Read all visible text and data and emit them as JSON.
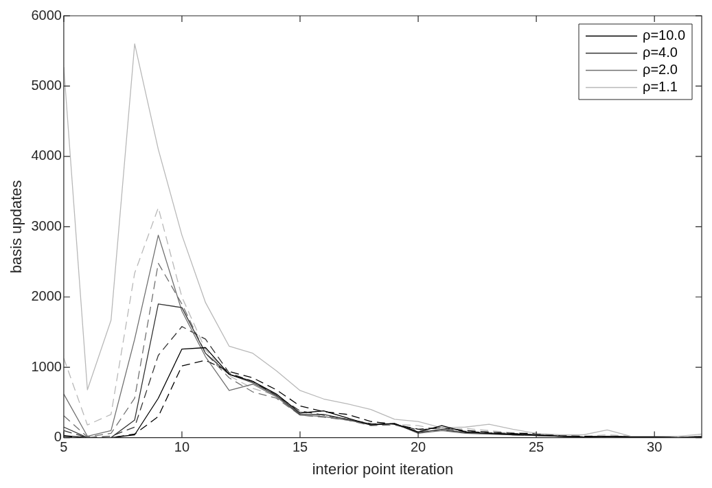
{
  "chart_data": {
    "type": "line",
    "xlabel": "interior point iteration",
    "ylabel": "basis updates",
    "x": [
      5,
      6,
      7,
      8,
      9,
      10,
      11,
      12,
      13,
      14,
      15,
      16,
      17,
      18,
      19,
      20,
      21,
      22,
      23,
      24,
      25,
      26,
      27,
      28,
      29,
      30,
      31,
      32
    ],
    "xlim": [
      5,
      32
    ],
    "xticks": [
      5,
      10,
      15,
      20,
      25,
      30
    ],
    "ylim": [
      0,
      6000
    ],
    "yticks": [
      0,
      1000,
      2000,
      3000,
      4000,
      5000,
      6000
    ],
    "grid": false,
    "legend": "top right",
    "marker": "none",
    "series": [
      {
        "name": "ρ=10.0",
        "color": "#000000",
        "line_style": "solid",
        "values": [
          30,
          0,
          0,
          40,
          560,
          1260,
          1280,
          900,
          800,
          620,
          350,
          380,
          280,
          180,
          200,
          80,
          170,
          80,
          60,
          50,
          40,
          20,
          10,
          20,
          10,
          10,
          0,
          10
        ]
      },
      {
        "name": "ρ=4.0",
        "color": "#333333",
        "line_style": "solid",
        "values": [
          150,
          0,
          0,
          250,
          1900,
          1850,
          1200,
          900,
          780,
          600,
          330,
          330,
          260,
          190,
          200,
          70,
          120,
          70,
          60,
          40,
          30,
          20,
          10,
          20,
          10,
          10,
          0,
          10
        ]
      },
      {
        "name": "ρ=2.0",
        "color": "#707070",
        "line_style": "solid",
        "values": [
          620,
          20,
          100,
          1400,
          2880,
          1800,
          1150,
          670,
          760,
          580,
          320,
          300,
          250,
          180,
          200,
          60,
          100,
          60,
          50,
          40,
          30,
          20,
          10,
          20,
          10,
          10,
          0,
          20
        ]
      },
      {
        "name": "ρ=1.1",
        "color": "#b8b8b8",
        "line_style": "solid",
        "values": [
          5270,
          680,
          1670,
          5600,
          4100,
          2880,
          1920,
          1300,
          1200,
          950,
          670,
          550,
          480,
          400,
          260,
          230,
          140,
          150,
          190,
          120,
          60,
          40,
          40,
          110,
          20,
          20,
          20,
          50
        ]
      },
      {
        "color": "#000000",
        "line_style": "dashed",
        "values": [
          20,
          0,
          0,
          50,
          300,
          1020,
          1100,
          940,
          850,
          680,
          450,
          370,
          330,
          230,
          190,
          120,
          140,
          100,
          80,
          60,
          60,
          30,
          20,
          20,
          10,
          10,
          0,
          10
        ]
      },
      {
        "color": "#333333",
        "line_style": "dashed",
        "values": [
          100,
          0,
          20,
          150,
          1170,
          1580,
          1400,
          920,
          800,
          600,
          380,
          320,
          260,
          200,
          190,
          110,
          140,
          90,
          70,
          60,
          40,
          20,
          10,
          20,
          10,
          10,
          0,
          10
        ]
      },
      {
        "color": "#707070",
        "line_style": "dashed",
        "values": [
          310,
          10,
          60,
          560,
          2480,
          1900,
          1200,
          850,
          650,
          560,
          320,
          290,
          250,
          170,
          180,
          90,
          100,
          80,
          60,
          40,
          30,
          20,
          10,
          20,
          10,
          10,
          0,
          20
        ]
      },
      {
        "color": "#b8b8b8",
        "line_style": "dashed",
        "values": [
          1130,
          180,
          330,
          2340,
          3270,
          2000,
          1250,
          880,
          700,
          600,
          370,
          300,
          260,
          200,
          190,
          170,
          110,
          130,
          100,
          70,
          50,
          30,
          20,
          40,
          20,
          20,
          10,
          20
        ]
      }
    ]
  }
}
